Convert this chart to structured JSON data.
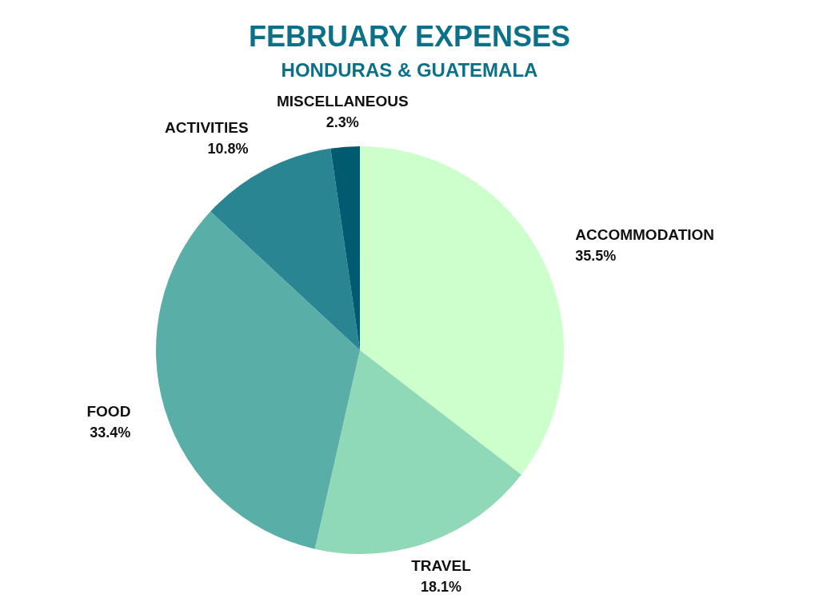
{
  "chart_data": {
    "type": "pie",
    "title": "FEBRUARY EXPENSES",
    "subtitle": "HONDURAS & GUATEMALA",
    "categories": [
      "ACCOMMODATION",
      "TRAVEL",
      "FOOD",
      "ACTIVITIES",
      "MISCELLANEOUS"
    ],
    "values": [
      35.5,
      18.1,
      33.4,
      10.8,
      2.3
    ],
    "value_labels": [
      "35.5%",
      "18.1%",
      "33.4%",
      "10.8%",
      "2.3%"
    ],
    "colors": [
      "#ccffcc",
      "#8fd8b8",
      "#5aaea8",
      "#288591",
      "#005a70"
    ]
  }
}
